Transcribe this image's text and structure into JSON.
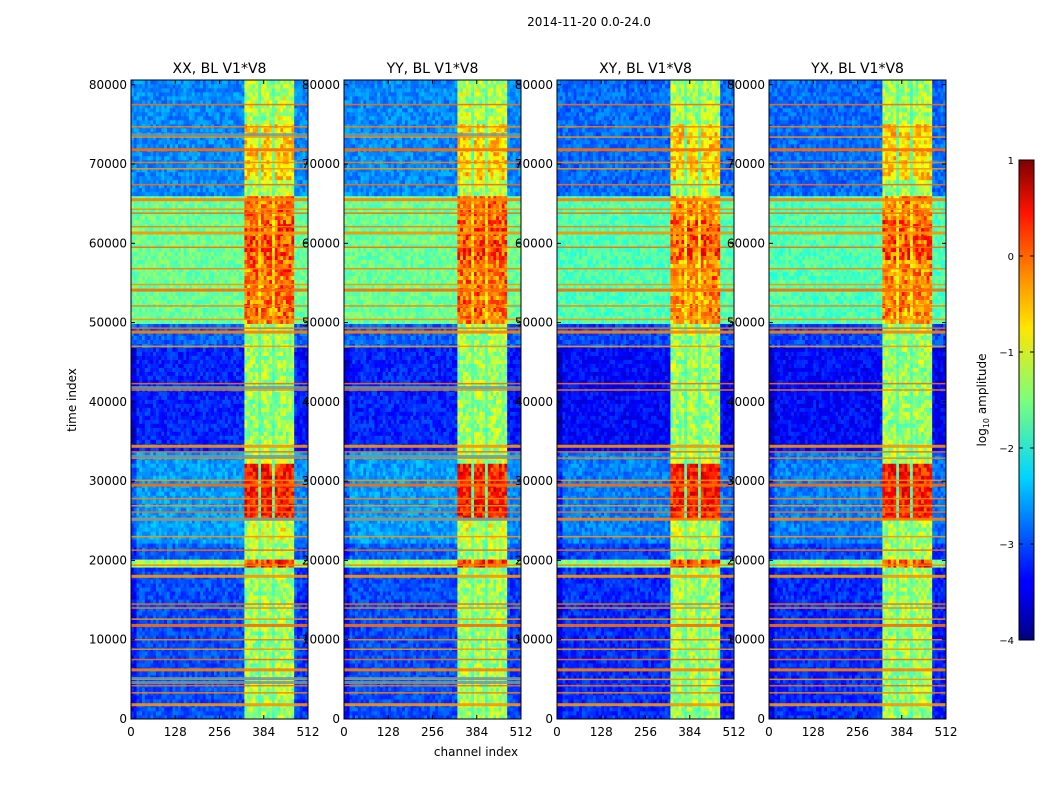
{
  "chart_data": {
    "type": "heatmap",
    "suptitle": "2014-11-20 0.0-24.0",
    "xlabel": "channel index",
    "ylabel": "time index",
    "xlim": [
      0,
      512
    ],
    "ylim": [
      0,
      80600
    ],
    "x_ticks": [
      0,
      128,
      256,
      384,
      512
    ],
    "y_ticks": [
      0,
      10000,
      20000,
      30000,
      40000,
      50000,
      60000,
      70000,
      80000
    ],
    "colormap": "jet",
    "colorbar": {
      "label": "log10 amplitude",
      "label_base": "log",
      "label_sub": "10",
      "label_rest": " amplitude",
      "range": [
        -4,
        1
      ],
      "ticks": [
        "1",
        "0",
        "−1",
        "−2",
        "−3",
        "−4"
      ]
    },
    "panels": [
      {
        "title": "XX, BL V1*V8"
      },
      {
        "title": "YY, BL V1*V8"
      },
      {
        "title": "XY, BL V1*V8"
      },
      {
        "title": "YX, BL V1*V8"
      }
    ],
    "features": {
      "bright_channel_band": [
        325,
        475
      ],
      "bright_channel_sub_bands": [
        [
          325,
          365
        ],
        [
          375,
          410
        ],
        [
          418,
          445
        ],
        [
          452,
          475
        ]
      ],
      "low_edge_channels": [
        0,
        15
      ],
      "high_edge_channels": [
        480,
        512
      ],
      "time_segments": [
        {
          "range": [
            0,
            19000
          ],
          "level": -3.0
        },
        {
          "range": [
            19000,
            20000
          ],
          "level": -1.3
        },
        {
          "range": [
            20000,
            22000
          ],
          "level": -2.9
        },
        {
          "range": [
            22000,
            34000
          ],
          "level": -2.6
        },
        {
          "range": [
            34000,
            47000
          ],
          "level": -3.2
        },
        {
          "range": [
            47000,
            50000
          ],
          "level": -2.9
        },
        {
          "range": [
            50000,
            66000
          ],
          "level": -1.6
        },
        {
          "range": [
            66000,
            80600
          ],
          "level": -2.7
        }
      ],
      "strong_rows": [
        1800,
        3300,
        4200,
        5000,
        6200,
        7500,
        8800,
        10000,
        11800,
        12600,
        14000,
        14500,
        18000,
        19400,
        21300,
        23000,
        25200,
        26100,
        26900,
        27800,
        29500,
        30100,
        32900,
        33700,
        34400,
        41500,
        42300,
        47000,
        48800,
        49300,
        50400,
        52100,
        54100,
        54800,
        56800,
        59500,
        61300,
        62100,
        63800,
        64300,
        65500,
        67400,
        69400,
        70200,
        71800,
        73400,
        74700,
        77500
      ],
      "grey_rows_xx_yy": [
        4600,
        5100,
        25200,
        33100,
        41800,
        73700
      ]
    }
  }
}
